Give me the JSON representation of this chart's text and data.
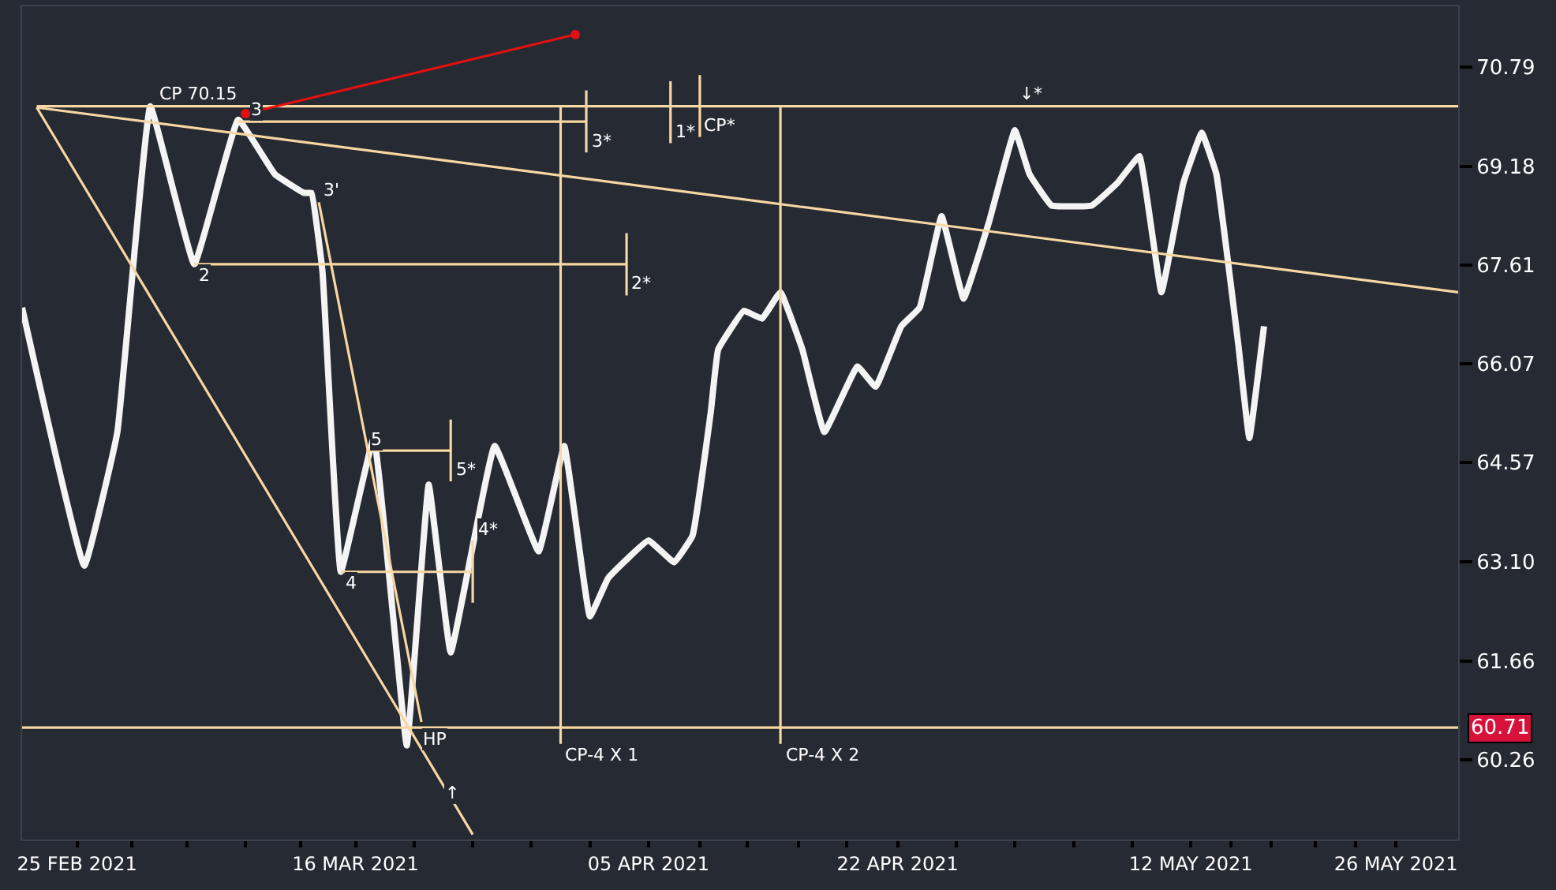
{
  "chart_data": {
    "type": "line",
    "log": true,
    "grid": false,
    "xlim": [
      "2021-02-21T06:00",
      "2021-05-30T06:00"
    ],
    "ylim": [
      59.15,
      71.8
    ],
    "xticks": [
      {
        "value": "2021-02-25",
        "label": "25 FEB 2021"
      },
      {
        "value": "2021-02-28T18:00",
        "label": null
      },
      {
        "value": "2021-03-04T12:00",
        "label": null
      },
      {
        "value": "2021-03-08T12:00",
        "label": null
      },
      {
        "value": "2021-03-12T06:00",
        "label": null
      },
      {
        "value": "2021-03-16",
        "label": "16 MAR 2021"
      },
      {
        "value": "2021-03-20",
        "label": null
      },
      {
        "value": "2021-03-24",
        "label": null
      },
      {
        "value": "2021-03-28",
        "label": null
      },
      {
        "value": "2021-04-01",
        "label": null
      },
      {
        "value": "2021-04-05",
        "label": "05 APR 2021"
      },
      {
        "value": "2021-04-08T12:00",
        "label": null
      },
      {
        "value": "2021-04-11T18:00",
        "label": null
      },
      {
        "value": "2021-04-15T06:00",
        "label": null
      },
      {
        "value": "2021-04-18T12:00",
        "label": null
      },
      {
        "value": "2021-04-22",
        "label": "22 APR 2021"
      },
      {
        "value": "2021-04-26",
        "label": null
      },
      {
        "value": "2021-04-30",
        "label": null
      },
      {
        "value": "2021-05-04",
        "label": null
      },
      {
        "value": "2021-05-08",
        "label": null
      },
      {
        "value": "2021-05-12",
        "label": "12 MAY 2021"
      },
      {
        "value": "2021-05-14T18:00",
        "label": null
      },
      {
        "value": "2021-05-17T12:00",
        "label": null
      },
      {
        "value": "2021-05-20T12:00",
        "label": null
      },
      {
        "value": "2021-05-23T06:00",
        "label": null
      },
      {
        "value": "2021-05-26",
        "label": "26 MAY 2021"
      }
    ],
    "yticks": [
      70.79,
      69.18,
      67.61,
      66.07,
      64.57,
      {
        "value": 63.1,
        "label": "63.10"
      },
      61.66,
      60.26
    ],
    "series": [
      {
        "color": "#f4f4f4",
        "x": [
          "2021-02-21T06:00",
          "2021-02-25T12:00",
          "2021-02-27T18:00",
          "2021-03-02",
          "2021-03-05",
          "2021-03-08",
          "2021-03-10T12:00",
          "2021-03-12T12:00",
          "2021-03-13",
          "2021-03-13T18:00",
          "2021-03-15",
          "2021-03-17T06:00",
          "2021-03-19T12:00",
          "2021-03-21",
          "2021-03-22T12:00",
          "2021-03-25T12:00",
          "2021-03-28T12:00",
          "2021-03-30T06:00",
          "2021-04-01",
          "2021-04-02T06:00",
          "2021-04-05",
          "2021-04-06T18:00",
          "2021-04-08",
          "2021-04-09T06:00",
          "2021-04-09T18:00",
          "2021-04-11T12:00",
          "2021-04-12T18:00",
          "2021-04-14",
          "2021-04-15T12:00",
          "2021-04-17",
          "2021-04-19T06:00",
          "2021-04-20T12:00",
          "2021-04-22T06:00",
          "2021-04-23T12:00",
          "2021-04-25",
          "2021-04-26T12:00",
          "2021-04-28T06:00",
          "2021-04-30",
          "2021-05-01",
          "2021-05-02T12:00",
          "2021-05-05T06:00",
          "2021-05-07",
          "2021-05-08T12:00",
          "2021-05-10",
          "2021-05-11T12:00",
          "2021-05-12T18:00",
          "2021-05-13T18:00",
          "2021-05-14T12:00",
          "2021-05-15T06:00",
          "2021-05-16",
          "2021-05-17"
        ],
        "values": [
          66.94,
          63.04,
          65.03,
          70.15,
          67.62,
          69.93,
          69.05,
          68.75,
          68.75,
          67.5,
          62.95,
          64.94,
          60.46,
          64.24,
          61.78,
          64.82,
          63.25,
          64.82,
          62.3,
          62.86,
          63.41,
          63.09,
          63.48,
          65.34,
          66.29,
          66.89,
          66.77,
          67.18,
          66.29,
          65.03,
          66.03,
          65.72,
          66.65,
          66.94,
          68.38,
          67.08,
          68.3,
          69.76,
          69.05,
          68.55,
          68.55,
          68.91,
          69.34,
          67.18,
          68.91,
          69.72,
          69.05,
          67.74,
          66.36,
          64.94,
          66.65
        ]
      },
      {
        "type": "line",
        "color": "#f7d7a2",
        "x": [
          "2021-02-22T06:00",
          "2021-05-30T06:00"
        ],
        "values": [
          70.13,
          67.18
        ]
      },
      {
        "type": "line",
        "color": "#f7d7a2",
        "x": [
          "2021-02-22T06:00",
          "2021-03-24"
        ],
        "values": [
          70.13,
          59.22
        ]
      },
      {
        "type": "line",
        "color": "#f7d7a2",
        "x": [
          "2021-03-13T12:00",
          "2021-03-20T12:00"
        ],
        "values": [
          68.6,
          60.79
        ]
      },
      {
        "type": "line",
        "color": "#f7d7a2",
        "x": [
          "2021-02-22T06:00",
          "2021-05-30T06:00"
        ],
        "values": [
          70.15,
          70.15
        ]
      },
      {
        "type": "line",
        "color": "#f7d7a2",
        "x": [
          "2021-03-08",
          "2021-03-31T18:00"
        ],
        "values": [
          69.9,
          69.9
        ]
      },
      {
        "type": "line",
        "color": "#f7d7a2",
        "x": [
          "2021-03-05",
          "2021-04-03T12:00"
        ],
        "values": [
          67.62,
          67.62
        ]
      },
      {
        "type": "line",
        "color": "#f7d7a2",
        "x": [
          "2021-03-16T18:00",
          "2021-03-22T12:00"
        ],
        "values": [
          64.75,
          64.75
        ]
      },
      {
        "type": "line",
        "color": "#f7d7a2",
        "x": [
          "2021-03-15",
          "2021-03-24"
        ],
        "values": [
          62.95,
          62.95
        ]
      },
      {
        "type": "line",
        "color": "#f7d7a2",
        "x": [
          "2021-03-30",
          "2021-03-30"
        ],
        "values": [
          70.15,
          60.48
        ]
      },
      {
        "type": "line",
        "color": "#f7d7a2",
        "x": [
          "2021-04-14",
          "2021-04-14"
        ],
        "values": [
          70.15,
          60.48
        ]
      },
      {
        "type": "line",
        "color": "#f7d7a2",
        "x": [
          "2021-03-31T18:00",
          "2021-03-31T18:00"
        ],
        "values": [
          70.41,
          69.4
        ]
      },
      {
        "type": "line",
        "color": "#f7d7a2",
        "x": [
          "2021-04-06T12:00",
          "2021-04-06T12:00"
        ],
        "values": [
          70.56,
          69.55
        ]
      },
      {
        "type": "line",
        "color": "#f7d7a2",
        "x": [
          "2021-04-08T12:00",
          "2021-04-08T12:00"
        ],
        "values": [
          70.66,
          69.65
        ]
      },
      {
        "type": "line",
        "color": "#f7d7a2",
        "x": [
          "2021-04-03T12:00",
          "2021-04-03T12:00"
        ],
        "values": [
          68.11,
          67.13
        ]
      },
      {
        "type": "line",
        "color": "#f7d7a2",
        "x": [
          "2021-03-22T12:00",
          "2021-03-22T12:00"
        ],
        "values": [
          65.22,
          64.29
        ]
      },
      {
        "type": "line",
        "color": "#f7d7a2",
        "x": [
          "2021-03-24",
          "2021-03-24"
        ],
        "values": [
          63.41,
          62.5
        ]
      },
      {
        "type": "line",
        "color": "#e31010",
        "marker": "circle",
        "x": [
          "2021-03-31",
          "2021-03-08T12:00"
        ],
        "values": [
          71.33,
          70.03
        ]
      }
    ],
    "annotations": [
      {
        "text": "CP 70.15",
        "x": "2021-03-02T06:00",
        "y": 70.15
      },
      {
        "text": "2",
        "x": "2021-03-05",
        "y": 67.62
      },
      {
        "text": "3",
        "x": "2021-03-08T12:00",
        "y": 69.9
      },
      {
        "text": "3'",
        "x": "2021-03-13T12:00",
        "y": 68.6
      },
      {
        "text": "4",
        "x": "2021-03-15",
        "y": 62.95
      },
      {
        "text": "5",
        "x": "2021-03-16T18:00",
        "y": 64.75
      },
      {
        "text": "HP",
        "x": "2021-03-20T06:00",
        "y": 60.71
      },
      {
        "text": "1*",
        "x": "2021-04-06T12:00",
        "y": 69.55
      },
      {
        "text": "2*",
        "x": "2021-04-03T12:00",
        "y": 67.13
      },
      {
        "text": "3*",
        "x": "2021-03-31T18:00",
        "y": 69.4
      },
      {
        "text": "4*",
        "x": "2021-03-24",
        "y": 63.41
      },
      {
        "text": "5*",
        "x": "2021-03-22T12:00",
        "y": 64.29
      },
      {
        "text": "CP*",
        "x": "2021-04-08T12:00",
        "y": 69.65
      },
      {
        "text": "CP-4 X 1",
        "x": "2021-03-30",
        "y": 60.48
      },
      {
        "text": "CP-4 X 2",
        "x": "2021-04-14",
        "y": 60.48
      },
      {
        "text": "↑",
        "x": "2021-03-21T18:00",
        "y": 59.96
      },
      {
        "text": "↓",
        "x": "2021-04-30",
        "y": 70.15
      },
      {
        "text": "*",
        "x": "2021-05-01",
        "y": 70.15
      }
    ],
    "ref_lines": [
      {
        "axis": "y",
        "value": 60.71,
        "label": "60.71",
        "color": "#f7d7a2"
      }
    ]
  }
}
